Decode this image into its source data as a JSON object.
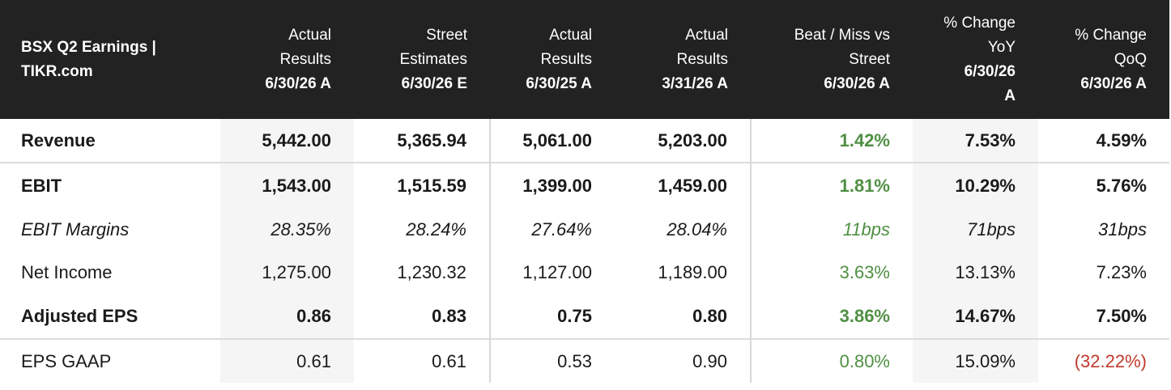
{
  "table": {
    "title_line1": "BSX Q2 Earnings |",
    "title_line2": "TIKR.com",
    "columns": [
      {
        "line1": "Actual",
        "line2": "Results",
        "line3": "6/30/26 A"
      },
      {
        "line1": "Street",
        "line2": "Estimates",
        "line3": "6/30/26 E"
      },
      {
        "line1": "Actual",
        "line2": "Results",
        "line3": "6/30/25 A"
      },
      {
        "line1": "Actual",
        "line2": "Results",
        "line3": "3/31/26 A"
      },
      {
        "line1": "Beat / Miss vs",
        "line2": "Street",
        "line3": "6/30/26 A"
      },
      {
        "line1": "% Change",
        "line2": "YoY",
        "line3": "6/30/26",
        "line4": "A"
      },
      {
        "line1": "% Change",
        "line2": "QoQ",
        "line3": "6/30/26 A"
      }
    ],
    "rows": [
      {
        "label": "Revenue",
        "values": [
          "5,442.00",
          "5,365.94",
          "5,061.00",
          "5,203.00",
          "1.42%",
          "7.53%",
          "4.59%"
        ]
      },
      {
        "label": "EBIT",
        "values": [
          "1,543.00",
          "1,515.59",
          "1,399.00",
          "1,459.00",
          "1.81%",
          "10.29%",
          "5.76%"
        ]
      },
      {
        "label": "EBIT Margins",
        "values": [
          "28.35%",
          "28.24%",
          "27.64%",
          "28.04%",
          "11bps",
          "71bps",
          "31bps"
        ]
      },
      {
        "label": "Net Income",
        "values": [
          "1,275.00",
          "1,230.32",
          "1,127.00",
          "1,189.00",
          "3.63%",
          "13.13%",
          "7.23%"
        ]
      },
      {
        "label": "Adjusted EPS",
        "values": [
          "0.86",
          "0.83",
          "0.75",
          "0.80",
          "3.86%",
          "14.67%",
          "7.50%"
        ]
      },
      {
        "label": "EPS GAAP",
        "values": [
          "0.61",
          "0.61",
          "0.53",
          "0.90",
          "0.80%",
          "15.09%",
          "(32.22%)"
        ]
      }
    ]
  },
  "colors": {
    "header_bg": "#222222",
    "positive": "#4f8f43",
    "negative": "#c0392b",
    "shade": "#f5f5f5"
  }
}
